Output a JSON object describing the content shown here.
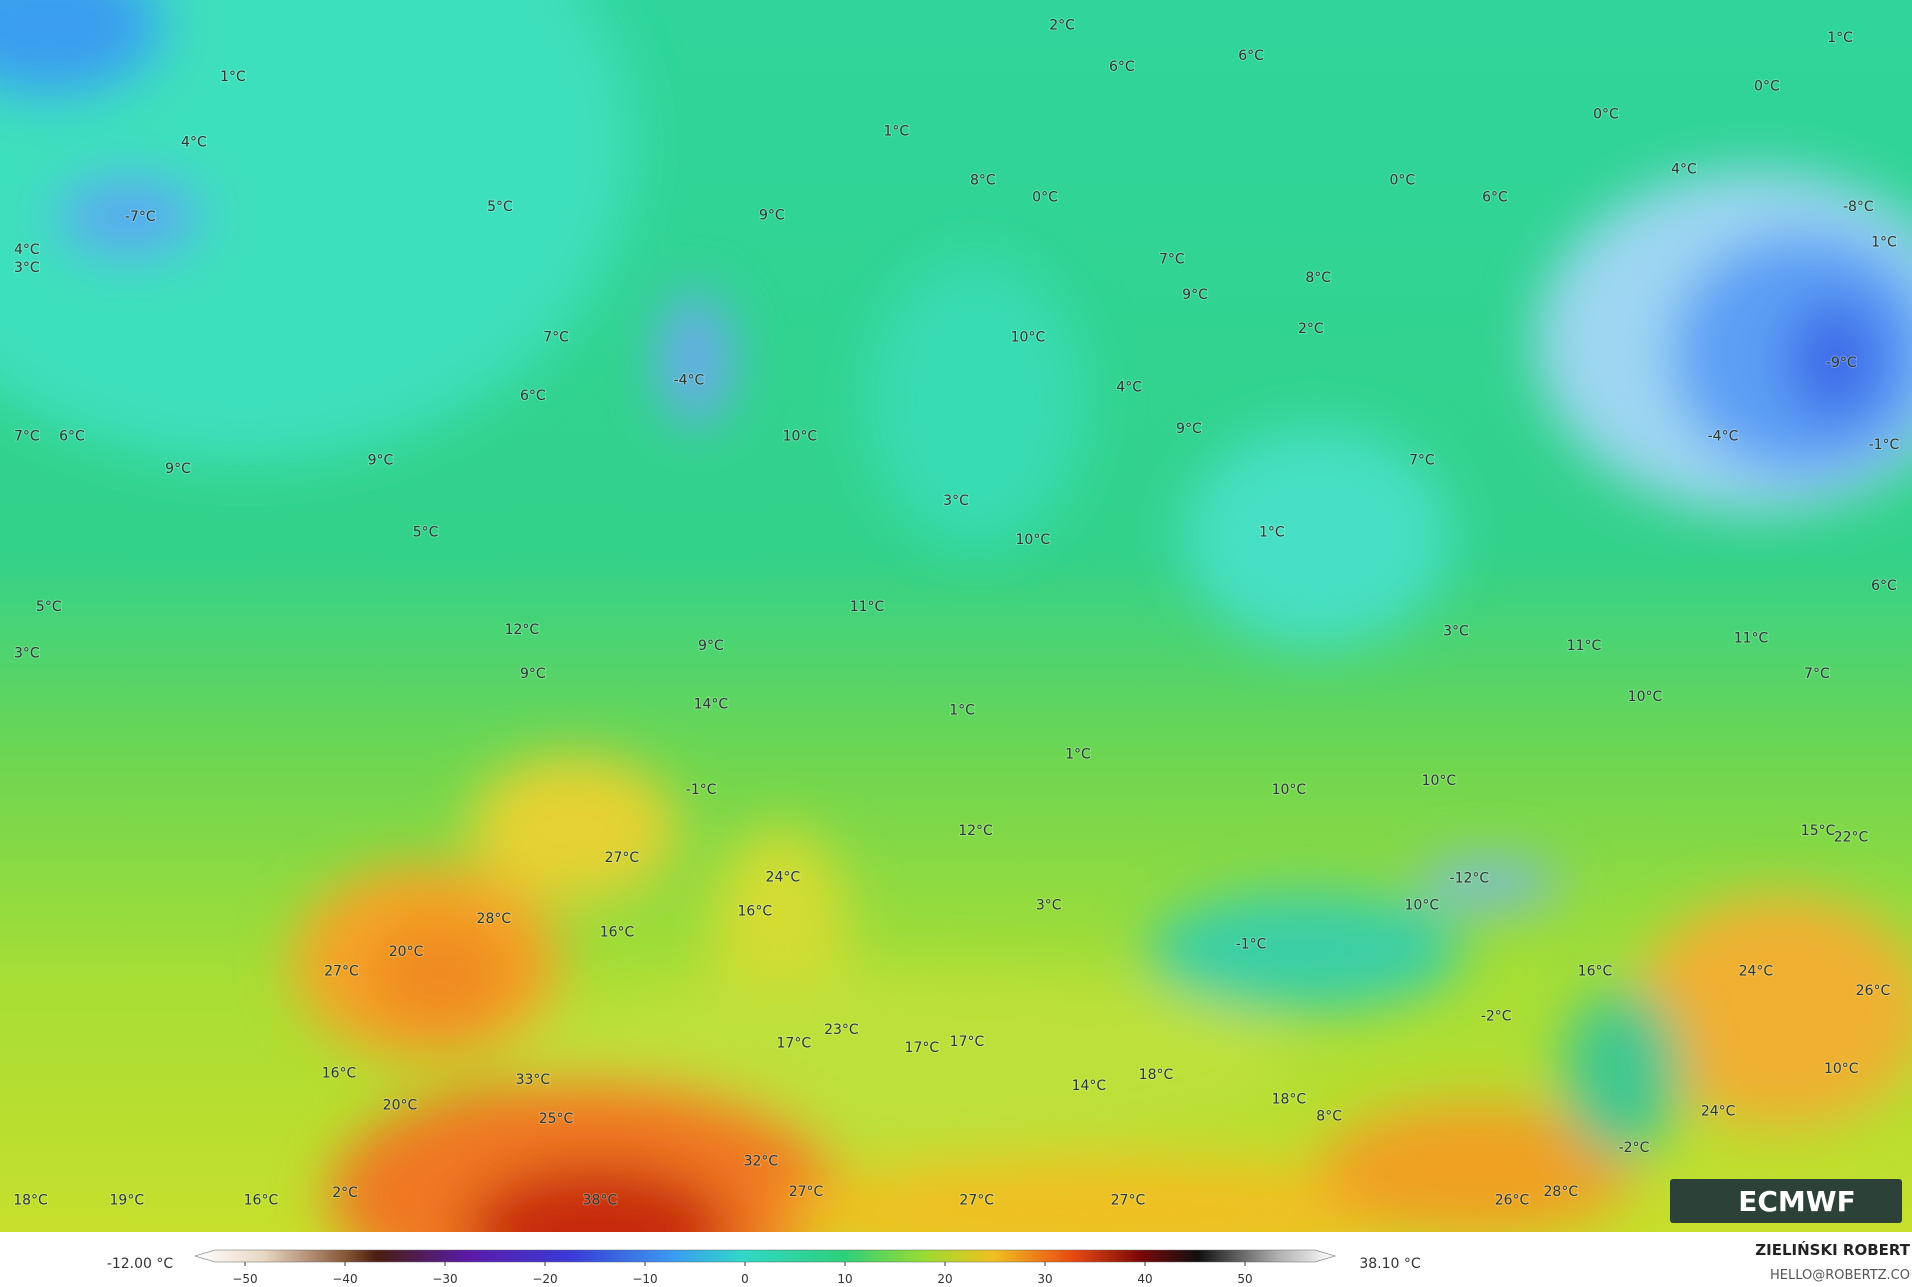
{
  "map": {
    "labels": [
      "1°C",
      "4°C",
      "-7°C",
      "4°C",
      "3°C",
      "5°C",
      "7°C",
      "6°C",
      "7°C",
      "6°C",
      "9°C",
      "9°C",
      "5°C",
      "5°C",
      "3°C",
      "12°C",
      "9°C",
      "9°C",
      "14°C",
      "11°C",
      "1°C",
      "1°C",
      "-1°C",
      "27°C",
      "24°C",
      "16°C",
      "28°C",
      "20°C",
      "16°C",
      "27°C",
      "12°C",
      "3°C",
      "23°C",
      "17°C",
      "17°C",
      "17°C",
      "16°C",
      "33°C",
      "20°C",
      "25°C",
      "32°C",
      "27°C",
      "38°C",
      "18°C",
      "19°C",
      "16°C",
      "2°C",
      "27°C",
      "27°C",
      "14°C",
      "18°C",
      "18°C",
      "8°C",
      "-1°C",
      "-12°C",
      "10°C",
      "16°C",
      "-2°C",
      "-2°C",
      "26°C",
      "28°C",
      "24°C",
      "10°C",
      "24°C",
      "26°C",
      "15°C",
      "22°C",
      "10°C",
      "7°C",
      "11°C",
      "11°C",
      "10°C",
      "10°C",
      "3°C",
      "1°C",
      "7°C",
      "9°C",
      "4°C",
      "10°C",
      "3°C",
      "10°C",
      "-4°C",
      "9°C",
      "10°C",
      "7°C",
      "9°C",
      "8°C",
      "2°C",
      "8°C",
      "0°C",
      "1°C",
      "2°C",
      "6°C",
      "6°C",
      "0°C",
      "6°C",
      "0°C",
      "0°C",
      "1°C",
      "4°C",
      "-8°C",
      "1°C",
      "-9°C",
      "-4°C",
      "-1°C",
      "6°C"
    ],
    "logo": "ECMWF"
  },
  "colorbar": {
    "min_label": "-12.00 °C",
    "max_label": "38.10 °C",
    "lim": [
      -55,
      59
    ],
    "ticks": [
      {
        "value": -50,
        "label": "−50"
      },
      {
        "value": -40,
        "label": "−40"
      },
      {
        "value": -30,
        "label": "−30"
      },
      {
        "value": -20,
        "label": "−20"
      },
      {
        "value": -10,
        "label": "−10"
      },
      0,
      10,
      20,
      30,
      40,
      50
    ]
  },
  "credits": {
    "author": "ZIELIŃSKI ROBERT",
    "contact": "HELLO@ROBERTZ.CO"
  }
}
